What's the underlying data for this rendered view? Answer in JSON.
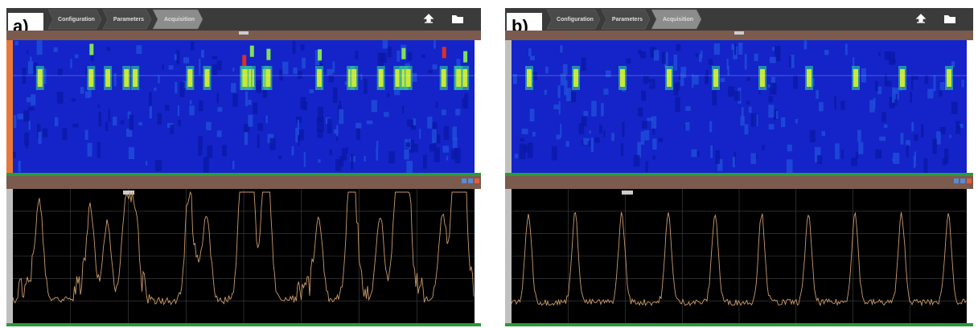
{
  "panels": [
    {
      "label": "a)",
      "tabs": [
        "Configuration",
        "Parameters",
        "Acquisition"
      ]
    },
    {
      "label": "b)",
      "tabs": [
        "Configuration",
        "Parameters",
        "Acquisition"
      ]
    }
  ]
}
